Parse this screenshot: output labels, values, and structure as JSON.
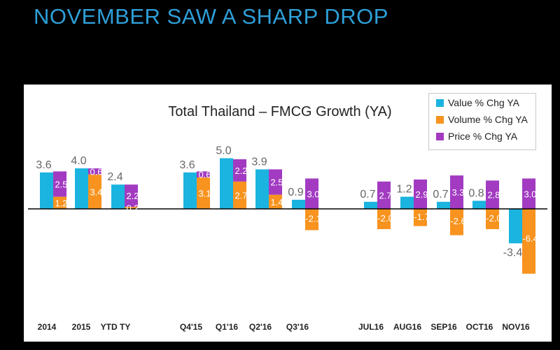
{
  "slide": {
    "title": "NOVEMBER SAW A SHARP DROP"
  },
  "colors": {
    "value": "#1bb3e0",
    "volume": "#f7931e",
    "price": "#a23bc1",
    "title": "#2e9fd8"
  },
  "chart_data": {
    "type": "bar",
    "title": "Total Thailand – FMCG Growth (YA)",
    "legend_position": "top-right",
    "grid": false,
    "categories": [
      "2014",
      "2015",
      "YTD TY",
      "Q4'15",
      "Q1'16",
      "Q2'16",
      "Q3'16",
      "JUL16",
      "AUG16",
      "SEP16",
      "OCT16",
      "NOV16"
    ],
    "series": [
      {
        "name": "Value % Chg YA",
        "values": [
          3.6,
          4.0,
          2.4,
          3.6,
          5.0,
          3.9,
          0.9,
          0.7,
          1.2,
          0.7,
          0.8,
          -3.4
        ]
      },
      {
        "name": "Volume % Chg YA",
        "values": [
          1.2,
          3.4,
          0.2,
          3.1,
          2.7,
          1.4,
          -2.1,
          -2.0,
          -1.7,
          -2.6,
          -2.0,
          -6.4
        ]
      },
      {
        "name": "Price % Chg YA",
        "values": [
          2.5,
          0.6,
          2.2,
          0.6,
          2.2,
          2.5,
          3.0,
          2.7,
          2.9,
          3.3,
          2.8,
          3.0
        ]
      }
    ],
    "value_labels": [
      "3.6",
      "4.0",
      "2.4",
      "3.6",
      "5.0",
      "3.9",
      "0.9",
      "0.7",
      "1.2",
      "0.7",
      "0.8",
      "-3.4"
    ],
    "volume_labels": [
      "1.2",
      "3.4",
      "0.2",
      "3.1",
      "2.7",
      "1.4",
      "-2.1",
      "-2.0",
      "-1.7",
      "-2.6",
      "-2.0",
      "-6.4"
    ],
    "price_labels": [
      "2.5",
      "0.6",
      "2.2",
      "0.6",
      "2.2",
      "2.5",
      "3.0",
      "2.7",
      "2.9",
      "3.3",
      "2.8",
      "3.0"
    ]
  }
}
